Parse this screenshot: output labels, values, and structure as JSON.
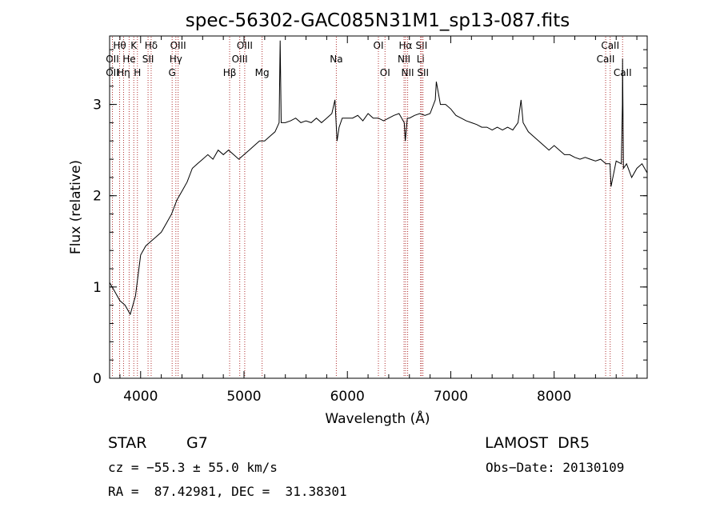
{
  "chart_data": {
    "type": "line",
    "title": "spec-56302-GAC085N31M1_sp13-087.fits",
    "xlabel": "Wavelength (Å)",
    "ylabel": "Flux (relative)",
    "xlim": [
      3700,
      8900
    ],
    "ylim": [
      0,
      3.75
    ],
    "xticks": [
      4000,
      5000,
      6000,
      7000,
      8000
    ],
    "xtick_labels": [
      "4000",
      "5000",
      "6000",
      "7000",
      "8000"
    ],
    "yticks": [
      0,
      1,
      2,
      3
    ],
    "ytick_labels": [
      "0",
      "1",
      "2",
      "3"
    ],
    "grid": false,
    "line_color": "#000000",
    "marker_color": "#b03030",
    "series": [
      {
        "x": [
          3700,
          3750,
          3800,
          3850,
          3900,
          3950,
          4000,
          4050,
          4100,
          4150,
          4200,
          4250,
          4300,
          4350,
          4400,
          4450,
          4500,
          4550,
          4600,
          4650,
          4700,
          4750,
          4800,
          4850,
          4900,
          4950,
          5000,
          5050,
          5100,
          5150,
          5200,
          5250,
          5300,
          5340,
          5350,
          5360,
          5400,
          5450,
          5500,
          5550,
          5600,
          5650,
          5700,
          5750,
          5800,
          5850,
          5880,
          5900,
          5920,
          5950,
          6000,
          6050,
          6100,
          6150,
          6200,
          6250,
          6300,
          6350,
          6400,
          6450,
          6500,
          6550,
          6560,
          6580,
          6600,
          6650,
          6700,
          6750,
          6800,
          6850,
          6860,
          6900,
          6950,
          7000,
          7050,
          7100,
          7150,
          7200,
          7250,
          7300,
          7350,
          7400,
          7450,
          7500,
          7550,
          7600,
          7650,
          7680,
          7700,
          7750,
          7800,
          7850,
          7900,
          7950,
          8000,
          8050,
          8100,
          8150,
          8200,
          8250,
          8300,
          8350,
          8400,
          8450,
          8500,
          8540,
          8550,
          8600,
          8650,
          8660,
          8662,
          8670,
          8700,
          8750,
          8800,
          8850,
          8900
        ],
        "y": [
          1.05,
          0.95,
          0.85,
          0.8,
          0.7,
          0.9,
          1.35,
          1.45,
          1.5,
          1.55,
          1.6,
          1.7,
          1.8,
          1.95,
          2.05,
          2.15,
          2.3,
          2.35,
          2.4,
          2.45,
          2.4,
          2.5,
          2.45,
          2.5,
          2.45,
          2.4,
          2.45,
          2.5,
          2.55,
          2.6,
          2.6,
          2.65,
          2.7,
          2.8,
          3.7,
          2.8,
          2.8,
          2.82,
          2.85,
          2.8,
          2.82,
          2.8,
          2.85,
          2.8,
          2.85,
          2.9,
          3.05,
          2.6,
          2.75,
          2.85,
          2.85,
          2.85,
          2.88,
          2.82,
          2.9,
          2.85,
          2.85,
          2.82,
          2.85,
          2.88,
          2.9,
          2.8,
          2.6,
          2.85,
          2.85,
          2.88,
          2.9,
          2.88,
          2.9,
          3.05,
          3.25,
          3.0,
          3.0,
          2.95,
          2.88,
          2.85,
          2.82,
          2.8,
          2.78,
          2.75,
          2.75,
          2.72,
          2.75,
          2.72,
          2.75,
          2.72,
          2.8,
          3.05,
          2.8,
          2.7,
          2.65,
          2.6,
          2.55,
          2.5,
          2.55,
          2.5,
          2.45,
          2.45,
          2.42,
          2.4,
          2.42,
          2.4,
          2.38,
          2.4,
          2.35,
          2.35,
          2.1,
          2.38,
          2.35,
          3.0,
          3.5,
          2.3,
          2.35,
          2.2,
          2.3,
          2.35,
          2.25
        ]
      }
    ],
    "spectral_lines": [
      {
        "label": "Hθ",
        "x": 3797,
        "row": 0
      },
      {
        "label": "OII",
        "x": 3727,
        "row": 1
      },
      {
        "label": "OII",
        "x": 3727,
        "row": 2
      },
      {
        "label": "He",
        "x": 3889,
        "row": 1
      },
      {
        "label": "Hη",
        "x": 3835,
        "row": 2
      },
      {
        "label": "K",
        "x": 3934,
        "row": 0
      },
      {
        "label": "H",
        "x": 3969,
        "row": 2
      },
      {
        "label": "Hδ",
        "x": 4102,
        "row": 0
      },
      {
        "label": "SII",
        "x": 4072,
        "row": 1
      },
      {
        "label": "OIII",
        "x": 4363,
        "row": 0
      },
      {
        "label": "Hγ",
        "x": 4341,
        "row": 1
      },
      {
        "label": "G",
        "x": 4305,
        "row": 2
      },
      {
        "label": "Hβ",
        "x": 4861,
        "row": 2
      },
      {
        "label": "OIII",
        "x": 5007,
        "row": 0
      },
      {
        "label": "OIII",
        "x": 4959,
        "row": 1
      },
      {
        "label": "Mg",
        "x": 5175,
        "row": 2
      },
      {
        "label": "Na",
        "x": 5893,
        "row": 1
      },
      {
        "label": "OI",
        "x": 6300,
        "row": 0
      },
      {
        "label": "OI",
        "x": 6364,
        "row": 2
      },
      {
        "label": "Hα",
        "x": 6563,
        "row": 0
      },
      {
        "label": "NII",
        "x": 6548,
        "row": 1
      },
      {
        "label": "NII",
        "x": 6583,
        "row": 2
      },
      {
        "label": "SII",
        "x": 6717,
        "row": 0
      },
      {
        "label": "Li",
        "x": 6708,
        "row": 1
      },
      {
        "label": "SII",
        "x": 6731,
        "row": 2
      },
      {
        "label": "CaII",
        "x": 8542,
        "row": 0
      },
      {
        "label": "CaII",
        "x": 8498,
        "row": 1
      },
      {
        "label": "CaII",
        "x": 8662,
        "row": 2
      }
    ]
  },
  "info": {
    "object_class": "STAR",
    "subclass": "G7",
    "survey": "LAMOST  DR5",
    "cz": "cz = −55.3 ± 55.0 km/s",
    "obs_date": "Obs−Date: 20130109",
    "coords": "RA =  87.42981, DEC =  31.38301"
  }
}
